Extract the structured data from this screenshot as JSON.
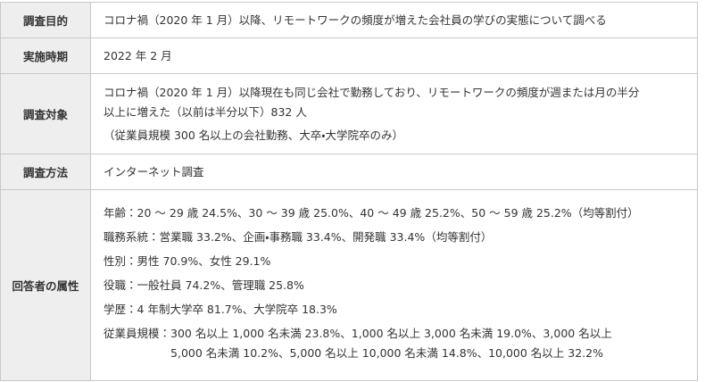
{
  "table": {
    "rows": [
      {
        "header": "調査目的",
        "lines": [
          "コロナ禍（2020 年 1 月）以降、リモートワークの頻度が増えた会社員の学びの実態について調べる"
        ]
      },
      {
        "header": "実施時期",
        "lines": [
          "2022 年 2 月"
        ]
      },
      {
        "header": "調査対象",
        "lines": [
          "コロナ禍（2020 年 1 月）以降現在も同じ会社で勤務しており、リモートワークの頻度が週または月の半分",
          "以上に増えた（以前は半分以下）832 人",
          "（従業員規模 300 名以上の会社勤務、大卒・大学院卒のみ）"
        ]
      },
      {
        "header": "調査方法",
        "lines": [
          "インターネット調査"
        ]
      },
      {
        "header": "回答者の属性",
        "items": [
          {
            "label": "年齢：",
            "lines": [
              "20 ～ 29 歳 24.5%、30 ～ 39 歳 25.0%、40 ～ 49 歳 25.2%、50 ～ 59 歳 25.2%（均等割付）"
            ]
          },
          {
            "label": "職務系統：",
            "lines": [
              "営業職 33.2%、企画・事務職 33.4%、開発職 33.4%（均等割付）"
            ]
          },
          {
            "label": "性別：",
            "lines": [
              "男性 70.9%、女性 29.1%"
            ]
          },
          {
            "label": "役職：",
            "lines": [
              "一般社員 74.2%、管理職 25.8%"
            ]
          },
          {
            "label": "学歴：",
            "lines": [
              "4 年制大学卒 81.7%、大学院卒 18.3%"
            ]
          },
          {
            "label": "従業員規模：",
            "lines": [
              "300 名以上 1,000 名未満 23.8%、1,000 名以上 3,000 名未満 19.0%、3,000 名以上",
              "5,000 名未満 10.2%、5,000 名以上 10,000 名未満 14.8%、10,000 名以上 32.2%"
            ]
          }
        ]
      }
    ]
  }
}
